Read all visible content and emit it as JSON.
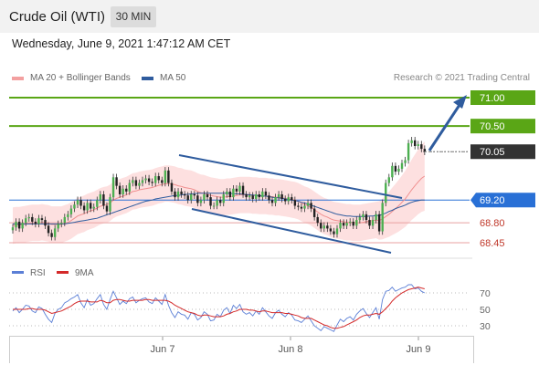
{
  "header": {
    "instrument": "Crude Oil (WTI)",
    "timeframe": "30 MIN"
  },
  "datetime": "Wednesday, June 9, 2021 1:47:12 AM CET",
  "legend": {
    "ma20_bb": "MA 20 + Bollinger Bands",
    "ma50": "MA 50"
  },
  "copyright": "Research © 2021 Trading Central",
  "colors": {
    "ma20": "#f08f8f",
    "ma50": "#2f5c9e",
    "green": "#5aa616",
    "blue": "#2970d6",
    "dark": "#333333",
    "red_text": "#c0392b",
    "band": "#fde0e0",
    "rsi": "#5b7fd6",
    "rsi_ma": "#d42a2a"
  },
  "chart_data": [
    {
      "type": "candlestick",
      "title": "Crude Oil (WTI)",
      "x_ticks": [
        "Jun 7",
        "Jun 8",
        "Jun 9"
      ],
      "ylim": [
        68.25,
        71.15
      ],
      "levels": [
        {
          "value": 71.0,
          "label": "71.00",
          "kind": "resistance"
        },
        {
          "value": 70.5,
          "label": "70.50",
          "kind": "resistance"
        },
        {
          "value": 70.05,
          "label": "70.05",
          "kind": "last"
        },
        {
          "value": 69.2,
          "label": "69.20",
          "kind": "pivot"
        },
        {
          "value": 68.8,
          "label": "68.80",
          "kind": "support"
        },
        {
          "value": 68.45,
          "label": "68.45",
          "kind": "support"
        }
      ],
      "closes": [
        68.72,
        68.82,
        68.7,
        68.8,
        68.88,
        68.9,
        68.82,
        68.78,
        68.88,
        68.85,
        68.75,
        68.62,
        68.55,
        68.7,
        68.78,
        68.8,
        68.9,
        68.95,
        69.05,
        69.12,
        69.2,
        69.1,
        69.02,
        69.15,
        69.05,
        69.08,
        69.2,
        69.3,
        69.1,
        69.0,
        69.25,
        69.6,
        69.45,
        69.3,
        69.4,
        69.35,
        69.5,
        69.55,
        69.45,
        69.5,
        69.55,
        69.58,
        69.52,
        69.5,
        69.62,
        69.55,
        69.5,
        69.72,
        69.5,
        69.35,
        69.25,
        69.35,
        69.3,
        69.28,
        69.2,
        69.3,
        69.28,
        69.15,
        69.2,
        69.3,
        69.25,
        69.1,
        69.1,
        69.2,
        69.15,
        69.3,
        69.35,
        69.25,
        69.4,
        69.35,
        69.45,
        69.3,
        69.25,
        69.28,
        69.22,
        69.3,
        69.25,
        69.35,
        69.28,
        69.2,
        69.15,
        69.25,
        69.3,
        69.22,
        69.18,
        69.25,
        69.2,
        69.1,
        69.08,
        69.05,
        69.1,
        69.15,
        69.05,
        68.9,
        68.8,
        68.7,
        68.75,
        68.7,
        68.65,
        68.6,
        68.7,
        68.8,
        68.75,
        68.8,
        68.82,
        68.75,
        68.85,
        68.9,
        68.95,
        68.85,
        68.75,
        68.85,
        68.95,
        68.65,
        69.15,
        69.5,
        69.6,
        69.8,
        69.7,
        69.75,
        69.85,
        69.9,
        70.2,
        70.25,
        70.15,
        70.18,
        70.1,
        70.05
      ],
      "ma20": [
        68.75,
        68.76,
        68.76,
        68.77,
        68.78,
        68.79,
        68.8,
        68.8,
        68.8,
        68.81,
        68.8,
        68.79,
        68.77,
        68.77,
        68.77,
        68.77,
        68.79,
        68.81,
        68.84,
        68.88,
        68.92,
        68.94,
        68.96,
        68.99,
        69.01,
        69.03,
        69.06,
        69.09,
        69.11,
        69.12,
        69.15,
        69.2,
        69.23,
        69.25,
        69.27,
        69.29,
        69.32,
        69.35,
        69.36,
        69.38,
        69.39,
        69.4,
        69.41,
        69.42,
        69.44,
        69.46,
        69.47,
        69.49,
        69.49,
        69.48,
        69.47,
        69.45,
        69.44,
        69.42,
        69.41,
        69.4,
        69.38,
        69.35,
        69.33,
        69.32,
        69.3,
        69.28,
        69.27,
        69.26,
        69.25,
        69.25,
        69.26,
        69.26,
        69.27,
        69.28,
        69.29,
        69.29,
        69.29,
        69.29,
        69.28,
        69.28,
        69.27,
        69.27,
        69.27,
        69.26,
        69.26,
        69.25,
        69.25,
        69.24,
        69.23,
        69.22,
        69.21,
        69.2,
        69.18,
        69.15,
        69.12,
        69.1,
        69.07,
        69.03,
        68.99,
        68.95,
        68.92,
        68.9,
        68.87,
        68.85,
        68.84,
        68.83,
        68.82,
        68.81,
        68.81,
        68.8,
        68.8,
        68.8,
        68.81,
        68.82,
        68.83,
        68.84,
        68.85,
        68.84,
        68.87,
        68.91,
        68.95,
        69.0,
        69.05,
        69.1,
        69.16,
        69.22,
        69.3,
        69.38,
        69.45,
        69.52,
        69.58,
        69.62
      ],
      "ma50": [
        68.78,
        68.78,
        68.78,
        68.78,
        68.78,
        68.78,
        68.78,
        68.78,
        68.78,
        68.78,
        68.78,
        68.78,
        68.78,
        68.78,
        68.78,
        68.78,
        68.78,
        68.79,
        68.8,
        68.81,
        68.82,
        68.83,
        68.84,
        68.85,
        68.86,
        68.87,
        68.88,
        68.9,
        68.92,
        68.94,
        68.96,
        68.98,
        69.0,
        69.02,
        69.04,
        69.06,
        69.08,
        69.1,
        69.12,
        69.14,
        69.16,
        69.18,
        69.19,
        69.2,
        69.22,
        69.23,
        69.24,
        69.25,
        69.26,
        69.27,
        69.28,
        69.28,
        69.29,
        69.3,
        69.3,
        69.31,
        69.31,
        69.32,
        69.32,
        69.32,
        69.32,
        69.32,
        69.32,
        69.32,
        69.32,
        69.32,
        69.32,
        69.32,
        69.31,
        69.31,
        69.31,
        69.3,
        69.3,
        69.29,
        69.29,
        69.28,
        69.28,
        69.27,
        69.27,
        69.26,
        69.25,
        69.24,
        69.24,
        69.23,
        69.22,
        69.21,
        69.2,
        69.19,
        69.18,
        69.16,
        69.15,
        69.13,
        69.11,
        69.09,
        69.07,
        69.05,
        69.03,
        69.01,
        68.99,
        68.97,
        68.95,
        68.94,
        68.93,
        68.92,
        68.92,
        68.91,
        68.91,
        68.91,
        68.91,
        68.91,
        68.92,
        68.92,
        68.93,
        68.93,
        68.95,
        68.97,
        69.0,
        69.02,
        69.05,
        69.07,
        69.09,
        69.11,
        69.14,
        69.16,
        69.18,
        69.19,
        69.2,
        69.2
      ],
      "bb_width": 0.32
    },
    {
      "type": "line",
      "title": "RSI",
      "series": [
        {
          "name": "RSI"
        },
        {
          "name": "9MA"
        }
      ],
      "y_ticks": [
        70,
        50,
        30
      ],
      "ylim": [
        20,
        80
      ],
      "rsi": [
        48,
        52,
        46,
        50,
        55,
        54,
        48,
        46,
        53,
        51,
        44,
        38,
        34,
        45,
        50,
        52,
        58,
        60,
        63,
        65,
        68,
        58,
        52,
        62,
        55,
        57,
        63,
        68,
        56,
        50,
        62,
        72,
        64,
        56,
        60,
        57,
        63,
        65,
        58,
        61,
        63,
        64,
        59,
        57,
        64,
        60,
        56,
        68,
        55,
        46,
        40,
        47,
        44,
        43,
        38,
        46,
        44,
        37,
        40,
        47,
        44,
        36,
        37,
        44,
        41,
        49,
        52,
        45,
        55,
        51,
        56,
        47,
        44,
        46,
        42,
        48,
        44,
        52,
        47,
        42,
        39,
        46,
        49,
        44,
        41,
        46,
        43,
        37,
        36,
        34,
        38,
        42,
        36,
        30,
        27,
        24,
        29,
        27,
        25,
        23,
        31,
        38,
        35,
        39,
        41,
        37,
        44,
        48,
        51,
        45,
        40,
        46,
        52,
        38,
        62,
        72,
        73,
        77,
        72,
        74,
        76,
        77,
        80,
        80,
        75,
        76,
        72,
        70
      ],
      "rsi_ma": [
        50,
        50,
        50,
        50,
        50,
        51,
        51,
        50,
        50,
        50,
        49,
        47,
        45,
        46,
        47,
        48,
        50,
        52,
        54,
        57,
        59,
        60,
        60,
        60,
        59,
        59,
        59,
        61,
        60,
        58,
        58,
        61,
        62,
        62,
        61,
        60,
        60,
        61,
        61,
        61,
        61,
        62,
        62,
        61,
        61,
        61,
        61,
        61,
        60,
        58,
        55,
        53,
        51,
        49,
        47,
        46,
        45,
        43,
        42,
        43,
        43,
        42,
        41,
        41,
        41,
        42,
        44,
        45,
        47,
        48,
        50,
        50,
        50,
        49,
        49,
        48,
        47,
        48,
        48,
        47,
        46,
        46,
        46,
        46,
        45,
        45,
        44,
        43,
        42,
        40,
        39,
        39,
        39,
        37,
        35,
        33,
        31,
        30,
        28,
        27,
        27,
        28,
        29,
        31,
        33,
        35,
        37,
        40,
        42,
        43,
        43,
        44,
        45,
        44,
        47,
        51,
        55,
        60,
        64,
        67,
        70,
        72,
        74,
        75,
        76,
        77,
        76,
        75
      ],
      "xlim": [
        0,
        127
      ]
    }
  ]
}
